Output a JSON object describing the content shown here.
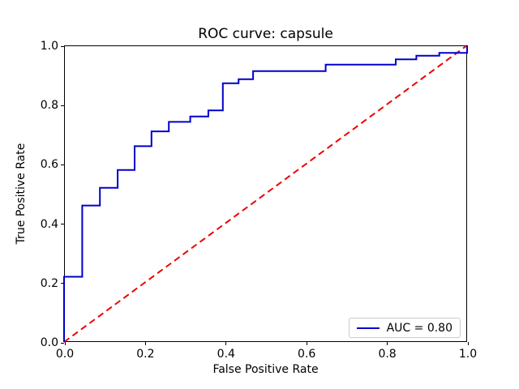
{
  "chart_data": {
    "type": "line",
    "title": "ROC curve: capsule",
    "xlabel": "False Positive Rate",
    "ylabel": "True Positive Rate",
    "xlim": [
      0.0,
      1.0
    ],
    "ylim": [
      0.0,
      1.0
    ],
    "grid": false,
    "x_ticks": [
      {
        "value": 0.0,
        "label": "0.0"
      },
      {
        "value": 0.2,
        "label": "0.2"
      },
      {
        "value": 0.4,
        "label": "0.4"
      },
      {
        "value": 0.6,
        "label": "0.6"
      },
      {
        "value": 0.8,
        "label": "0.8"
      },
      {
        "value": 1.0,
        "label": "1.0"
      }
    ],
    "y_ticks": [
      {
        "value": 0.0,
        "label": "0.0"
      },
      {
        "value": 0.2,
        "label": "0.2"
      },
      {
        "value": 0.4,
        "label": "0.4"
      },
      {
        "value": 0.6,
        "label": "0.6"
      },
      {
        "value": 0.8,
        "label": "0.8"
      },
      {
        "value": 1.0,
        "label": "1.0"
      }
    ],
    "series": [
      {
        "name": "roc-curve",
        "color": "#0000cc",
        "style": "solid",
        "line_width": 2,
        "points": [
          [
            0.0,
            0.0
          ],
          [
            0.0,
            0.22
          ],
          [
            0.045,
            0.22
          ],
          [
            0.045,
            0.46
          ],
          [
            0.089,
            0.46
          ],
          [
            0.089,
            0.52
          ],
          [
            0.133,
            0.52
          ],
          [
            0.133,
            0.58
          ],
          [
            0.175,
            0.58
          ],
          [
            0.175,
            0.66
          ],
          [
            0.217,
            0.66
          ],
          [
            0.217,
            0.71
          ],
          [
            0.26,
            0.71
          ],
          [
            0.26,
            0.742
          ],
          [
            0.313,
            0.742
          ],
          [
            0.313,
            0.76
          ],
          [
            0.358,
            0.76
          ],
          [
            0.358,
            0.781
          ],
          [
            0.394,
            0.781
          ],
          [
            0.394,
            0.872
          ],
          [
            0.433,
            0.872
          ],
          [
            0.433,
            0.886
          ],
          [
            0.469,
            0.886
          ],
          [
            0.469,
            0.913
          ],
          [
            0.649,
            0.913
          ],
          [
            0.649,
            0.935
          ],
          [
            0.823,
            0.935
          ],
          [
            0.823,
            0.953
          ],
          [
            0.874,
            0.953
          ],
          [
            0.874,
            0.965
          ],
          [
            0.931,
            0.965
          ],
          [
            0.931,
            0.975
          ],
          [
            1.0,
            0.975
          ],
          [
            1.0,
            1.0
          ]
        ]
      },
      {
        "name": "chance-diagonal",
        "color": "#ee0000",
        "style": "dashed",
        "line_width": 2,
        "points": [
          [
            0.0,
            0.0
          ],
          [
            1.0,
            1.0
          ]
        ]
      }
    ],
    "legend": {
      "position": "lower right",
      "entries": [
        {
          "label": "AUC = 0.80",
          "color": "#0000cc",
          "style": "solid"
        }
      ]
    },
    "auc": 0.8
  }
}
